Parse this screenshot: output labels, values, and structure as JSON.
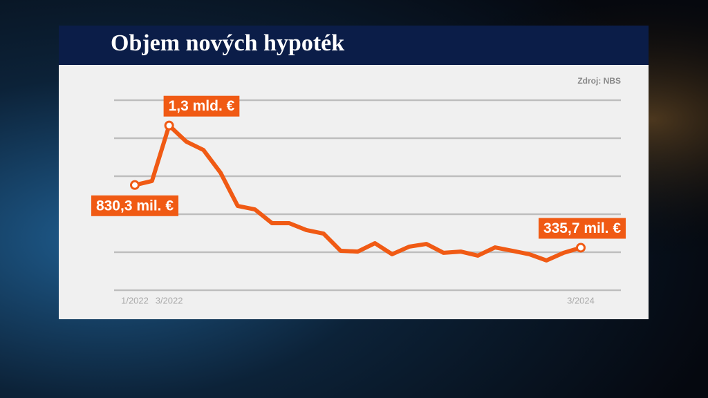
{
  "chart_data": {
    "type": "line",
    "title": "Objem nových hypoték",
    "source": "Zdroj: NBS",
    "categories": [
      "1/2022",
      null,
      "3/2022",
      null,
      null,
      null,
      null,
      null,
      null,
      null,
      null,
      null,
      null,
      null,
      null,
      null,
      null,
      null,
      null,
      null,
      null,
      null,
      null,
      null,
      null,
      null,
      "3/2024"
    ],
    "values": [
      830.3,
      862,
      1300,
      1173,
      1107,
      927,
      665,
      638,
      529,
      529,
      475,
      447,
      311,
      305,
      371,
      284,
      344,
      365,
      295,
      305,
      273,
      338,
      311,
      284,
      235,
      295,
      335.7
    ],
    "value_labels": [
      "830,3 mil. €",
      null,
      "1,3 mld. €",
      null,
      null,
      null,
      null,
      null,
      null,
      null,
      null,
      null,
      null,
      null,
      null,
      null,
      null,
      null,
      null,
      null,
      null,
      null,
      null,
      null,
      null,
      null,
      "335,7 mil. €"
    ],
    "color": "#f05a14",
    "ylim": [
      0,
      1500
    ],
    "yticks": [
      0,
      300,
      600,
      900,
      1200,
      1500
    ],
    "grid": true
  }
}
